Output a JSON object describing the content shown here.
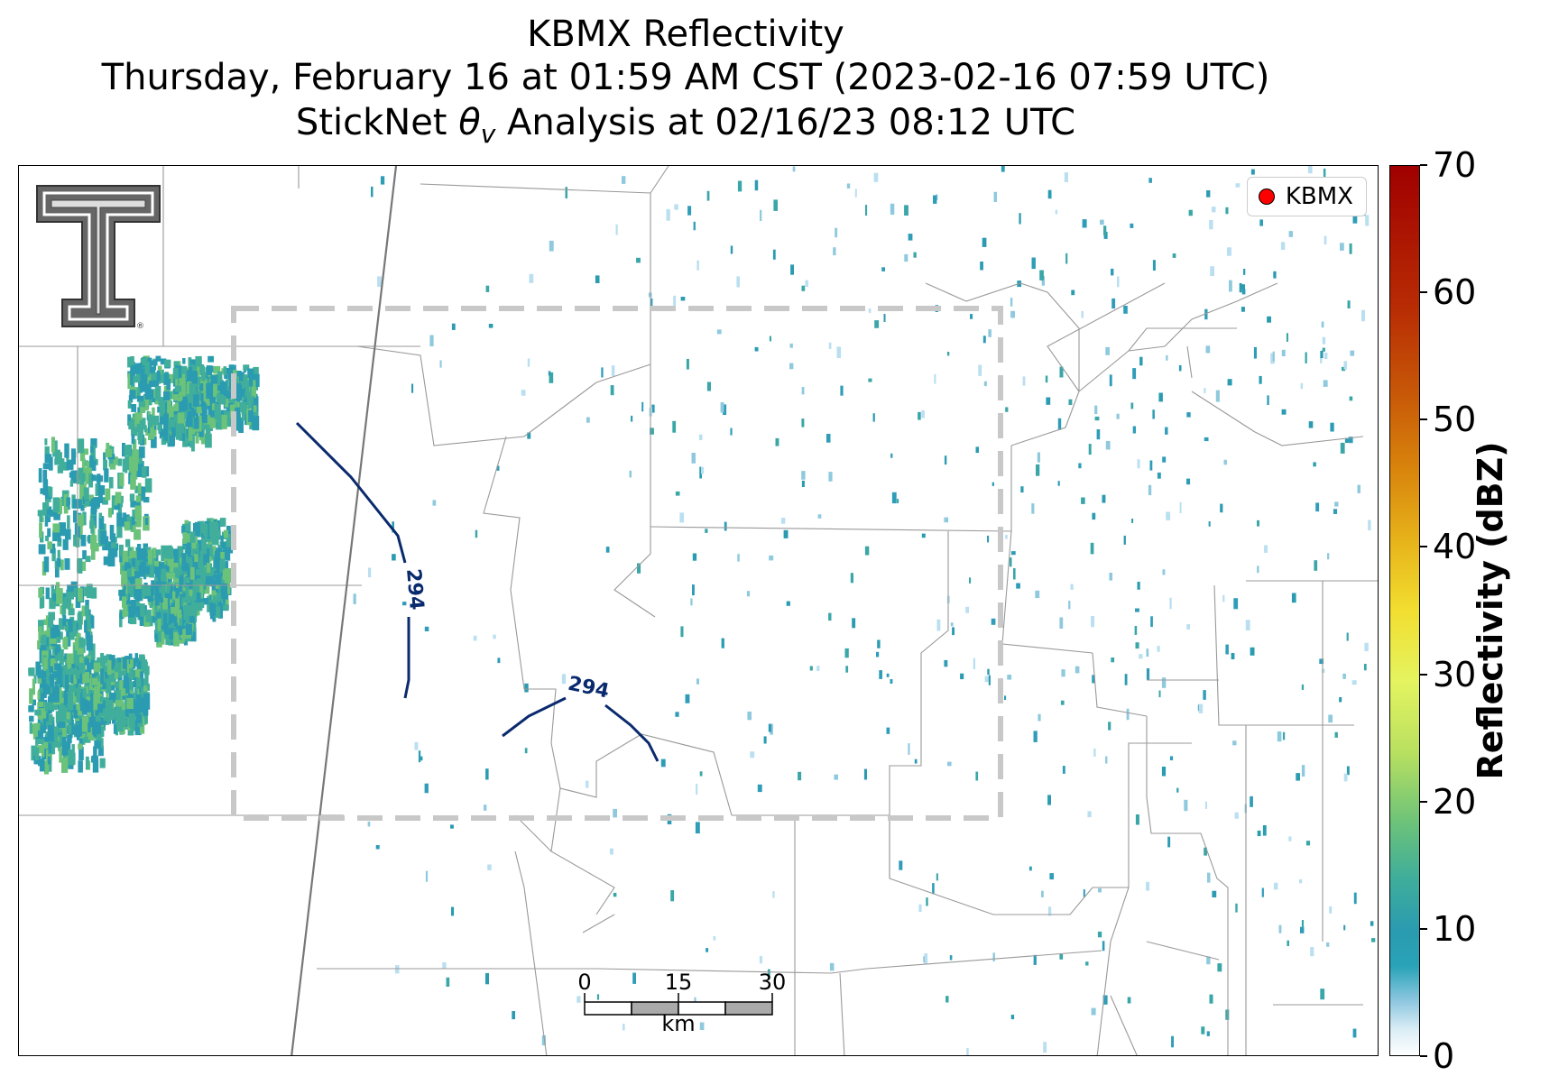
{
  "title": {
    "line1": "KBMX Reflectivity",
    "line2": "Thursday, February 16 at 01:59 AM CST (2023-02-16 07:59 UTC)",
    "line3_prefix": "StickNet ",
    "line3_symbol": "θ",
    "line3_subscript": "v",
    "line3_suffix": " Analysis at 02/16/23 08:12 UTC"
  },
  "legend": {
    "label": "KBMX",
    "marker_color": "#ff0000"
  },
  "contours": {
    "label": "294",
    "color": "#0a2a6e",
    "level": 294
  },
  "analysis_box": {
    "color": "#c8c8c8",
    "style": "dashed"
  },
  "scale_bar": {
    "ticks": [
      "0",
      "15",
      "30"
    ],
    "unit": "km",
    "fill_color": "#aaaaaa"
  },
  "colorbar": {
    "title": "Reflectivity (dBZ)",
    "ticks": [
      "0",
      "10",
      "20",
      "30",
      "40",
      "50",
      "60",
      "70"
    ],
    "range": [
      0,
      70
    ]
  },
  "colors": {
    "reflectivity_low": "#2a9bb0",
    "reflectivity_mid": "#6bc27a",
    "boundaries": "#888888",
    "highway": "#777777"
  },
  "logo": {
    "alt": "Texas Tech Double T"
  }
}
